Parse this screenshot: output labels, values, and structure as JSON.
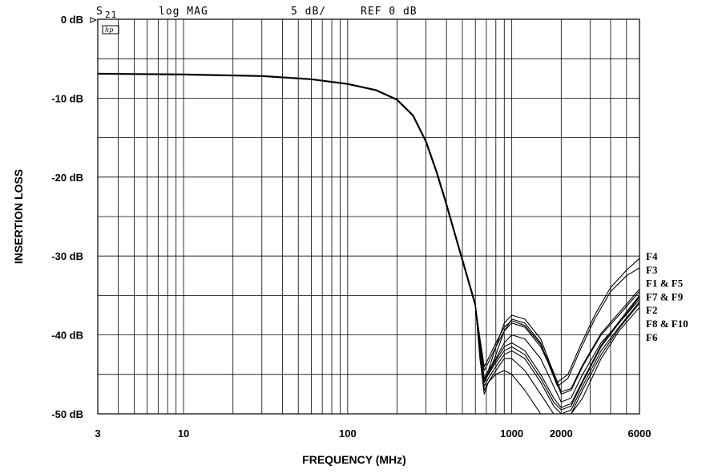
{
  "chart_data": {
    "type": "line",
    "header": {
      "param": "S",
      "param_sub": "21",
      "format": "log MAG",
      "scale": "5 dB/",
      "ref": "REF 0 dB",
      "logo": "hp"
    },
    "xlabel": "FREQUENCY (MHz)",
    "ylabel": "INSERTION LOSS",
    "xscale": "log",
    "xlim": [
      3,
      6000
    ],
    "ylim": [
      -50,
      0
    ],
    "x_tick_labels": [
      {
        "value": 3,
        "label": "3"
      },
      {
        "value": 10,
        "label": "10"
      },
      {
        "value": 100,
        "label": "100"
      },
      {
        "value": 1000,
        "label": "1000"
      },
      {
        "value": 2000,
        "label": "2000"
      },
      {
        "value": 6000,
        "label": "6000"
      }
    ],
    "y_tick_labels": [
      {
        "value": 0,
        "label": "0 dB"
      },
      {
        "value": -10,
        "label": "-10 dB"
      },
      {
        "value": -20,
        "label": "-20 dB"
      },
      {
        "value": -30,
        "label": "-30 dB"
      },
      {
        "value": -40,
        "label": "-40 dB"
      },
      {
        "value": -50,
        "label": "-50 dB"
      }
    ],
    "y_minor_step": 5,
    "x_grid": [
      3,
      4,
      5,
      6,
      7,
      8,
      9,
      10,
      20,
      30,
      40,
      50,
      60,
      70,
      80,
      90,
      100,
      200,
      300,
      400,
      500,
      600,
      700,
      800,
      900,
      1000,
      2000,
      3000,
      4000,
      5000,
      6000
    ],
    "common_passband": {
      "x": [
        3,
        10,
        30,
        60,
        100,
        150,
        200,
        250,
        300,
        350,
        400,
        450,
        500,
        550,
        600
      ],
      "y": [
        -6.9,
        -7.0,
        -7.2,
        -7.6,
        -8.2,
        -9.0,
        -10.2,
        -12.2,
        -15.5,
        -19.5,
        -23.5,
        -27.2,
        -30.5,
        -33.5,
        -36.2
      ]
    },
    "series": [
      {
        "name": "F1",
        "x": [
          600,
          640,
          680,
          720,
          800,
          900,
          1000,
          1200,
          1500,
          1800,
          2000,
          2300,
          2700,
          3500,
          4500,
          6000
        ],
        "y": [
          -36.2,
          -41,
          -44.5,
          -43.5,
          -41.5,
          -39.5,
          -38.5,
          -39,
          -41.5,
          -45,
          -47.5,
          -47,
          -44,
          -40,
          -37.5,
          -34.5
        ]
      },
      {
        "name": "F2",
        "x": [
          600,
          640,
          680,
          720,
          800,
          900,
          1000,
          1200,
          1500,
          1800,
          2000,
          2300,
          2700,
          3500,
          4500,
          6000
        ],
        "y": [
          -36.2,
          -42,
          -45.5,
          -44.5,
          -43,
          -41,
          -40,
          -40.5,
          -43,
          -46.5,
          -48.5,
          -48,
          -45,
          -41,
          -38.5,
          -35.5
        ]
      },
      {
        "name": "F3",
        "x": [
          600,
          640,
          680,
          720,
          800,
          900,
          1000,
          1200,
          1500,
          1700,
          1900,
          2200,
          2600,
          3200,
          4000,
          5000,
          6000
        ],
        "y": [
          -36.2,
          -42,
          -46,
          -45,
          -42.5,
          -39.5,
          -38,
          -38.5,
          -41,
          -44,
          -46.5,
          -45.5,
          -42,
          -38,
          -34.5,
          -32.5,
          -31.5
        ]
      },
      {
        "name": "F4",
        "x": [
          600,
          640,
          680,
          720,
          800,
          900,
          1000,
          1200,
          1500,
          1700,
          1900,
          2200,
          2600,
          3200,
          4000,
          5000,
          6000
        ],
        "y": [
          -36.2,
          -41.5,
          -45.5,
          -44.5,
          -41.5,
          -38.5,
          -37.5,
          -38,
          -40.5,
          -43.5,
          -46,
          -45,
          -41.5,
          -37.5,
          -34,
          -31.8,
          -30.3
        ]
      },
      {
        "name": "F5",
        "x": [
          600,
          640,
          680,
          720,
          800,
          900,
          1000,
          1200,
          1500,
          1800,
          2000,
          2300,
          2700,
          3500,
          4500,
          6000
        ],
        "y": [
          -36.2,
          -40.5,
          -44,
          -43,
          -41,
          -39,
          -38.2,
          -38.8,
          -41.2,
          -44.8,
          -47.2,
          -46.8,
          -43.8,
          -39.8,
          -37.2,
          -34.2
        ]
      },
      {
        "name": "F6",
        "x": [
          600,
          640,
          680,
          720,
          800,
          900,
          1000,
          1200,
          1500,
          1800,
          2000,
          2300,
          2700,
          3500,
          4500,
          6000
        ],
        "y": [
          -36.2,
          -43,
          -47.5,
          -46,
          -45,
          -44.5,
          -45,
          -47,
          -50,
          -50,
          -50,
          -50,
          -48,
          -43,
          -39.5,
          -36.5
        ]
      },
      {
        "name": "F7",
        "x": [
          600,
          640,
          680,
          720,
          800,
          900,
          1000,
          1200,
          1500,
          1800,
          2000,
          2300,
          2700,
          3500,
          4500,
          6000
        ],
        "y": [
          -36.2,
          -42.5,
          -46,
          -45,
          -43.5,
          -42,
          -41.5,
          -42.5,
          -45.5,
          -48.5,
          -49.5,
          -49,
          -46,
          -41.5,
          -38.5,
          -35.2
        ]
      },
      {
        "name": "F8",
        "x": [
          600,
          640,
          680,
          720,
          800,
          900,
          1000,
          1200,
          1500,
          1800,
          2000,
          2300,
          2700,
          3500,
          4500,
          6000
        ],
        "y": [
          -36.2,
          -42.5,
          -46.5,
          -45.5,
          -44,
          -42.5,
          -42,
          -43,
          -46,
          -49,
          -50,
          -49.5,
          -46.5,
          -42,
          -39,
          -35.8
        ]
      },
      {
        "name": "F9",
        "x": [
          600,
          640,
          680,
          720,
          800,
          900,
          1000,
          1200,
          1500,
          1800,
          2000,
          2300,
          2700,
          3500,
          4500,
          6000
        ],
        "y": [
          -36.2,
          -42.2,
          -45.8,
          -44.8,
          -43.2,
          -41.5,
          -41,
          -42,
          -45,
          -48,
          -49.2,
          -48.7,
          -45.8,
          -41.3,
          -38.3,
          -35
        ]
      },
      {
        "name": "F10",
        "x": [
          600,
          640,
          680,
          720,
          800,
          900,
          1000,
          1200,
          1500,
          1800,
          2000,
          2300,
          2700,
          3500,
          4500,
          6000
        ],
        "y": [
          -36.2,
          -43,
          -47,
          -46,
          -44.5,
          -43,
          -43,
          -44.5,
          -47.5,
          -50,
          -50,
          -50,
          -47,
          -42.5,
          -39.2,
          -36
        ]
      }
    ],
    "legend": {
      "placement": "right",
      "entries": [
        "F4",
        "F3",
        "F1 & F5",
        "F7 & F9",
        "F2",
        "F8 & F10",
        "F6"
      ]
    }
  }
}
